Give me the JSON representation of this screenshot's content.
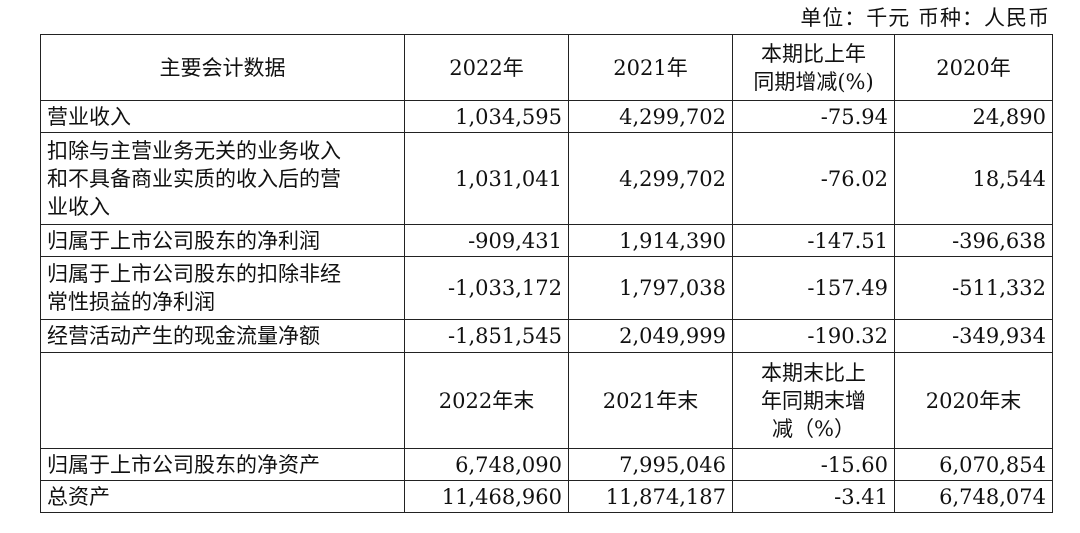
{
  "unit_note": "单位：千元  币种：人民币",
  "header1": {
    "label": "主要会计数据",
    "col1": "2022年",
    "col2": "2021年",
    "col3": "本期比上年\n同期增减(%)",
    "col4": "2020年"
  },
  "rows1": [
    {
      "label": "营业收入",
      "v2022": "1,034,595",
      "v2021": "4,299,702",
      "change": "-75.94",
      "v2020": "24,890"
    },
    {
      "label": "扣除与主营业务无关的业务收入\n和不具备商业实质的收入后的营\n业收入",
      "v2022": "1,031,041",
      "v2021": "4,299,702",
      "change": "-76.02",
      "v2020": "18,544"
    },
    {
      "label": "归属于上市公司股东的净利润",
      "v2022": "-909,431",
      "v2021": "1,914,390",
      "change": "-147.51",
      "v2020": "-396,638"
    },
    {
      "label": "归属于上市公司股东的扣除非经\n常性损益的净利润",
      "v2022": "-1,033,172",
      "v2021": "1,797,038",
      "change": "-157.49",
      "v2020": "-511,332"
    },
    {
      "label": "经营活动产生的现金流量净额",
      "v2022": "-1,851,545",
      "v2021": "2,049,999",
      "change": "-190.32",
      "v2020": "-349,934"
    }
  ],
  "header2": {
    "label": "",
    "col1": "2022年末",
    "col2": "2021年末",
    "col3": "本期末比上\n年同期末增\n减（%）",
    "col4": "2020年末"
  },
  "rows2": [
    {
      "label": "归属于上市公司股东的净资产",
      "v2022": "6,748,090",
      "v2021": "7,995,046",
      "change": "-15.60",
      "v2020": "6,070,854"
    },
    {
      "label": "总资产",
      "v2022": "11,468,960",
      "v2021": "11,874,187",
      "change": "-3.41",
      "v2020": "6,748,074"
    }
  ]
}
